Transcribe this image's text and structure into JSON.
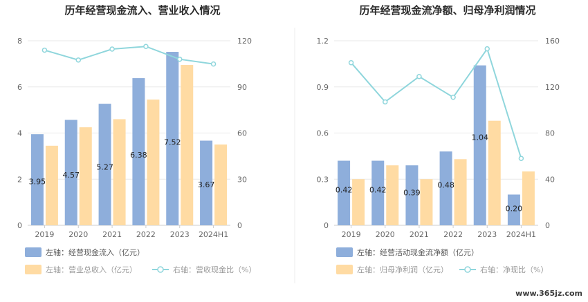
{
  "chart_data": [
    {
      "type": "bar",
      "title": "历年经营现金流入、营业收入情况",
      "categories": [
        "2019",
        "2020",
        "2021",
        "2022",
        "2023",
        "2024H1"
      ],
      "ylim_left": [
        0,
        8
      ],
      "yticks_left": [
        "0",
        "2",
        "4",
        "6",
        "8"
      ],
      "ylim_right": [
        0,
        120
      ],
      "yticks_right": [
        "0",
        "30",
        "60",
        "90",
        "120"
      ],
      "grid": true,
      "legend_position": "bottom",
      "series": [
        {
          "name": "左轴：经营现金流入（亿元）",
          "axis": "left",
          "kind": "bar",
          "color": "#8eaedb",
          "values": [
            3.95,
            4.57,
            5.27,
            6.38,
            7.52,
            3.67
          ],
          "labels": [
            "3.95",
            "4.57",
            "5.27",
            "6.38",
            "7.52",
            "3.67"
          ]
        },
        {
          "name": "左轴：营业总收入（亿元）",
          "axis": "left",
          "kind": "bar",
          "color": "#ffdba3",
          "values": [
            3.45,
            4.25,
            4.6,
            5.45,
            6.95,
            3.5
          ]
        },
        {
          "name": "右轴：营收现金比（%）",
          "axis": "right",
          "kind": "line",
          "color": "#8fd6dc",
          "values": [
            113.9,
            107.5,
            114.6,
            116.3,
            108.0,
            104.9
          ]
        }
      ]
    },
    {
      "type": "bar",
      "title": "历年经营现金流净额、归母净利润情况",
      "categories": [
        "2019",
        "2020",
        "2021",
        "2022",
        "2023",
        "2024H1"
      ],
      "ylim_left": [
        0,
        1.2
      ],
      "yticks_left": [
        "0",
        "0.3",
        "0.6",
        "0.9",
        "1.2"
      ],
      "ylim_right": [
        0,
        160
      ],
      "yticks_right": [
        "0",
        "40",
        "80",
        "120",
        "160"
      ],
      "grid": true,
      "legend_position": "bottom",
      "series": [
        {
          "name": "左轴：经营活动现金流净额（亿元）",
          "axis": "left",
          "kind": "bar",
          "color": "#8eaedb",
          "values": [
            0.42,
            0.42,
            0.39,
            0.48,
            1.04,
            0.2
          ],
          "labels": [
            "0.42",
            "0.42",
            "0.39",
            "0.48",
            "1.04",
            "0.20"
          ]
        },
        {
          "name": "左轴：归母净利润（亿元）",
          "axis": "left",
          "kind": "bar",
          "color": "#ffdba3",
          "values": [
            0.3,
            0.39,
            0.3,
            0.43,
            0.68,
            0.35
          ]
        },
        {
          "name": "右轴：净现比（%）",
          "axis": "right",
          "kind": "line",
          "color": "#8fd6dc",
          "values": [
            141,
            107,
            129,
            111,
            153,
            58
          ]
        }
      ]
    }
  ],
  "watermark": "www.365jz.com"
}
